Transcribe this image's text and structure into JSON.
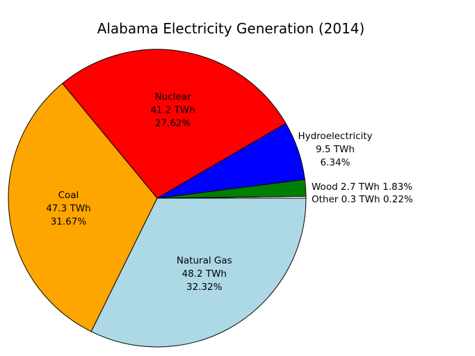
{
  "chart_data": {
    "type": "pie",
    "title": "Alabama Electricity Generation (2014)",
    "unit": "TWh",
    "start_angle_deg": 0,
    "direction": "counterclockwise",
    "slices": [
      {
        "name": "Other",
        "value": 0.3,
        "value_label": "0.3 TWh",
        "percent_label": "0.22%",
        "color": "#ffffff",
        "label_style": "outside-inline"
      },
      {
        "name": "Wood",
        "value": 2.7,
        "value_label": "2.7 TWh",
        "percent_label": "1.83%",
        "color": "#008000",
        "label_style": "outside-inline"
      },
      {
        "name": "Hydroelectricity",
        "value": 9.5,
        "value_label": "9.5 TWh",
        "percent_label": "6.34%",
        "color": "#0000ff",
        "label_style": "outside-stacked"
      },
      {
        "name": "Nuclear",
        "value": 41.2,
        "value_label": "41.2 TWh",
        "percent_label": "27.62%",
        "color": "#ff0000",
        "label_style": "inside"
      },
      {
        "name": "Coal",
        "value": 47.3,
        "value_label": "47.3 TWh",
        "percent_label": "31.67%",
        "color": "#ffa500",
        "label_style": "inside"
      },
      {
        "name": "Natural Gas",
        "value": 48.2,
        "value_label": "48.2 TWh",
        "percent_label": "32.32%",
        "color": "#add8e6",
        "label_style": "inside"
      }
    ]
  }
}
